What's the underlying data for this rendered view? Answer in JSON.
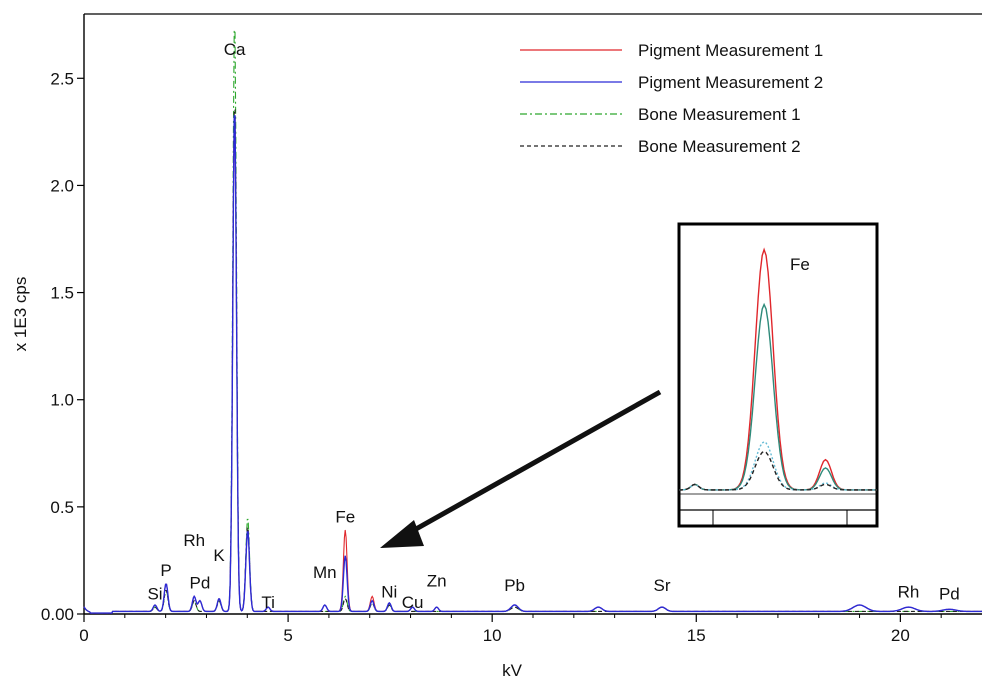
{
  "chart_data": {
    "type": "line",
    "xlabel": "kV",
    "ylabel": "x 1E3 cps",
    "xlim": [
      0,
      22
    ],
    "ylim": [
      0,
      2.8
    ],
    "xticks": [
      0,
      5,
      10,
      15,
      20
    ],
    "xtick_labels": [
      "0",
      "5",
      "10",
      "15",
      "20"
    ],
    "yticks": [
      0,
      0.5,
      1.0,
      1.5,
      2.0,
      2.5
    ],
    "ytick_labels": [
      "0.00",
      "0.5",
      "1.0",
      "1.5",
      "2.0",
      "2.5"
    ],
    "grid": false,
    "legend_position": "top-right",
    "series": [
      {
        "name": "Pigment Measurement 1",
        "color": "#e0262b",
        "dash": "solid",
        "peaks": [
          [
            1.74,
            0.03
          ],
          [
            2.01,
            0.13
          ],
          [
            2.7,
            0.07
          ],
          [
            2.84,
            0.05
          ],
          [
            3.31,
            0.06
          ],
          [
            3.69,
            2.37
          ],
          [
            4.01,
            0.38
          ],
          [
            4.51,
            0.02
          ],
          [
            5.9,
            0.03
          ],
          [
            6.4,
            0.38
          ],
          [
            7.06,
            0.07
          ],
          [
            7.48,
            0.04
          ],
          [
            8.05,
            0.02
          ],
          [
            8.64,
            0.02
          ],
          [
            10.55,
            0.03
          ],
          [
            12.6,
            0.02
          ],
          [
            14.16,
            0.02
          ],
          [
            19.0,
            0.03
          ],
          [
            20.2,
            0.02
          ],
          [
            21.2,
            0.01
          ]
        ]
      },
      {
        "name": "Pigment Measurement 2",
        "color": "#2b2bd6",
        "dash": "solid",
        "peaks": [
          [
            1.74,
            0.03
          ],
          [
            2.01,
            0.13
          ],
          [
            2.7,
            0.07
          ],
          [
            2.84,
            0.05
          ],
          [
            3.31,
            0.06
          ],
          [
            3.69,
            2.37
          ],
          [
            4.01,
            0.38
          ],
          [
            4.51,
            0.02
          ],
          [
            5.9,
            0.03
          ],
          [
            6.4,
            0.26
          ],
          [
            7.06,
            0.05
          ],
          [
            7.48,
            0.04
          ],
          [
            8.05,
            0.02
          ],
          [
            8.64,
            0.02
          ],
          [
            10.55,
            0.03
          ],
          [
            12.6,
            0.02
          ],
          [
            14.16,
            0.02
          ],
          [
            19.0,
            0.03
          ],
          [
            20.2,
            0.02
          ],
          [
            21.2,
            0.01
          ]
        ]
      },
      {
        "name": "Bone Measurement 1",
        "color": "#2ea82e",
        "dash": "dashdot",
        "peaks": [
          [
            1.74,
            0.02
          ],
          [
            2.01,
            0.1
          ],
          [
            2.7,
            0.05
          ],
          [
            3.31,
            0.05
          ],
          [
            3.69,
            2.78
          ],
          [
            4.01,
            0.44
          ],
          [
            6.4,
            0.07
          ],
          [
            7.06,
            0.04
          ],
          [
            7.48,
            0.03
          ],
          [
            10.55,
            0.02
          ],
          [
            14.16,
            0.02
          ]
        ]
      },
      {
        "name": "Bone Measurement 2",
        "color": "#222222",
        "dash": "dashed",
        "peaks": [
          [
            1.74,
            0.02
          ],
          [
            2.01,
            0.1
          ],
          [
            2.7,
            0.05
          ],
          [
            3.31,
            0.05
          ],
          [
            3.69,
            2.4
          ],
          [
            4.01,
            0.4
          ],
          [
            6.4,
            0.06
          ],
          [
            7.06,
            0.04
          ],
          [
            7.48,
            0.03
          ],
          [
            10.55,
            0.02
          ],
          [
            14.16,
            0.02
          ]
        ]
      }
    ],
    "annotations": [
      {
        "label": "Si",
        "x": 1.74,
        "y": 0.04
      },
      {
        "label": "P",
        "x": 2.01,
        "y": 0.15
      },
      {
        "label": "Rh",
        "x": 2.7,
        "y": 0.29
      },
      {
        "label": "Pd",
        "x": 2.84,
        "y": 0.09
      },
      {
        "label": "K",
        "x": 3.31,
        "y": 0.22
      },
      {
        "label": "Ca",
        "x": 3.69,
        "y": 2.58
      },
      {
        "label": "Ti",
        "x": 4.51,
        "y": 0.0
      },
      {
        "label": "Mn",
        "x": 5.9,
        "y": 0.14
      },
      {
        "label": "Fe",
        "x": 6.4,
        "y": 0.4
      },
      {
        "label": "Ni",
        "x": 7.48,
        "y": 0.05
      },
      {
        "label": "Cu",
        "x": 8.05,
        "y": 0.0
      },
      {
        "label": "Zn",
        "x": 8.64,
        "y": 0.1
      },
      {
        "label": "Pb",
        "x": 10.55,
        "y": 0.08
      },
      {
        "label": "Sr",
        "x": 14.16,
        "y": 0.08
      },
      {
        "label": "Rh",
        "x": 20.2,
        "y": 0.05
      },
      {
        "label": "Pd",
        "x": 21.2,
        "y": 0.04
      }
    ],
    "inset": {
      "label": "Fe",
      "description_of_content": "zoom of Fe peak region",
      "curves": [
        {
          "series": "Pigment Measurement 1",
          "color": "#e0262b",
          "main": 1.75,
          "side": 0.22
        },
        {
          "series": "Bone Measurement 1",
          "color": "#2e8a7a",
          "main": 1.35,
          "side": 0.16
        },
        {
          "series": "Pigment Measurement 2",
          "color": "#66bcd6",
          "main": 0.35,
          "side": 0.05
        },
        {
          "series": "Bone Measurement 2",
          "color": "#222222",
          "main": 0.28,
          "side": 0.04
        }
      ]
    }
  }
}
